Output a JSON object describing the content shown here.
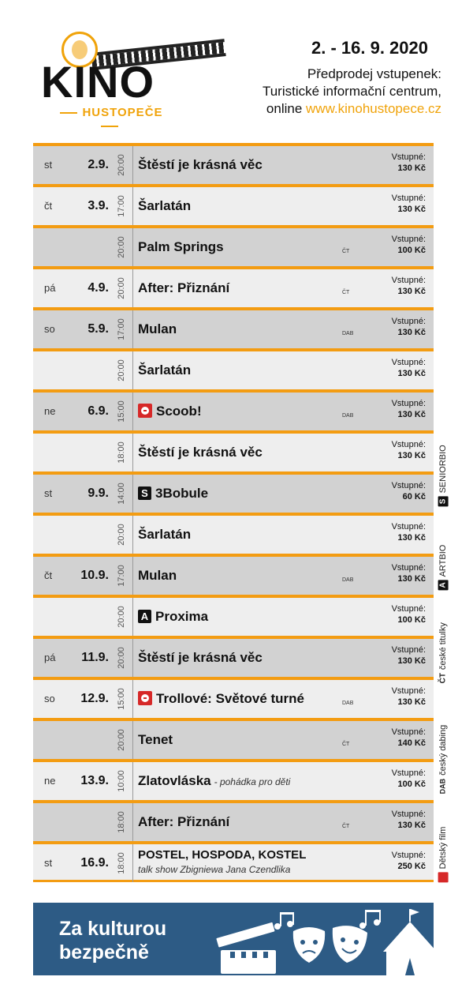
{
  "header": {
    "logo_text": "KINO",
    "logo_subtitle": "HUSTOPEČE",
    "date_range": "2. - 16. 9. 2020",
    "presale_line1": "Předprodej vstupenek:",
    "presale_line2": "Turistické informační centrum,",
    "presale_online": "online",
    "website": "www.kinohustopece.cz"
  },
  "price_label": "Vstupné:",
  "rows": [
    {
      "day": "st",
      "date": "2.9.",
      "time": "20:00",
      "title": "Štěstí je krásná věc",
      "tag": "",
      "price": "130 Kč",
      "icon": "",
      "shade": "g"
    },
    {
      "day": "čt",
      "date": "3.9.",
      "time": "17:00",
      "title": "Šarlatán",
      "tag": "",
      "price": "130 Kč",
      "icon": "",
      "shade": "l"
    },
    {
      "day": "",
      "date": "",
      "time": "20:00",
      "title": "Palm Springs",
      "tag": "ČT",
      "price": "100 Kč",
      "icon": "",
      "shade": "g"
    },
    {
      "day": "pá",
      "date": "4.9.",
      "time": "20:00",
      "title": "After: Přiznání",
      "tag": "ČT",
      "price": "130 Kč",
      "icon": "",
      "shade": "l"
    },
    {
      "day": "so",
      "date": "5.9.",
      "time": "17:00",
      "title": "Mulan",
      "tag": "DAB",
      "price": "130 Kč",
      "icon": "",
      "shade": "g"
    },
    {
      "day": "",
      "date": "",
      "time": "20:00",
      "title": "Šarlatán",
      "tag": "",
      "price": "130 Kč",
      "icon": "",
      "shade": "l"
    },
    {
      "day": "ne",
      "date": "6.9.",
      "time": "15:00",
      "title": "Scoob!",
      "tag": "DAB",
      "price": "130 Kč",
      "icon": "kid",
      "shade": "g"
    },
    {
      "day": "",
      "date": "",
      "time": "18:00",
      "title": "Štěstí je krásná věc",
      "tag": "",
      "price": "130 Kč",
      "icon": "",
      "shade": "l"
    },
    {
      "day": "st",
      "date": "9.9.",
      "time": "14:00",
      "title": "3Bobule",
      "tag": "",
      "price": "60 Kč",
      "icon": "S",
      "shade": "g"
    },
    {
      "day": "",
      "date": "",
      "time": "20:00",
      "title": "Šarlatán",
      "tag": "",
      "price": "130 Kč",
      "icon": "",
      "shade": "l"
    },
    {
      "day": "čt",
      "date": "10.9.",
      "time": "17:00",
      "title": "Mulan",
      "tag": "DAB",
      "price": "130 Kč",
      "icon": "",
      "shade": "g"
    },
    {
      "day": "",
      "date": "",
      "time": "20:00",
      "title": "Proxima",
      "tag": "",
      "price": "100 Kč",
      "icon": "A",
      "shade": "l"
    },
    {
      "day": "pá",
      "date": "11.9.",
      "time": "20:00",
      "title": "Štěstí je krásná věc",
      "tag": "",
      "price": "130 Kč",
      "icon": "",
      "shade": "g"
    },
    {
      "day": "so",
      "date": "12.9.",
      "time": "15:00",
      "title": "Trollové: Světové turné",
      "tag": "DAB",
      "price": "130 Kč",
      "icon": "kid",
      "shade": "l"
    },
    {
      "day": "",
      "date": "",
      "time": "20:00",
      "title": "Tenet",
      "tag": "ČT",
      "price": "140 Kč",
      "icon": "",
      "shade": "g"
    },
    {
      "day": "ne",
      "date": "13.9.",
      "time": "10:00",
      "title": "Zlatovláska",
      "note": "- pohádka pro děti",
      "tag": "",
      "price": "100 Kč",
      "icon": "",
      "shade": "l"
    },
    {
      "day": "",
      "date": "",
      "time": "18:00",
      "title": "After: Přiznání",
      "tag": "ČT",
      "price": "130 Kč",
      "icon": "",
      "shade": "g"
    },
    {
      "day": "st",
      "date": "16.9.",
      "time": "18:00",
      "title": "POSTEL, HOSPODA, KOSTEL",
      "subtitle": "talk show Zbigniewa Jana Czendlika",
      "tag": "",
      "price": "250 Kč",
      "icon": "",
      "shade": "l"
    }
  ],
  "legend": {
    "senior_symbol": "S",
    "senior": "SENIORBIO",
    "art_symbol": "A",
    "art": "ARTBIO",
    "subs_symbol": "ČT",
    "subs": "české titulky",
    "dub_symbol": "DAB",
    "dub": "český dabing",
    "kids": "Dětský film"
  },
  "banner": {
    "line1": "Za kulturou",
    "line2": "bezpečně"
  }
}
